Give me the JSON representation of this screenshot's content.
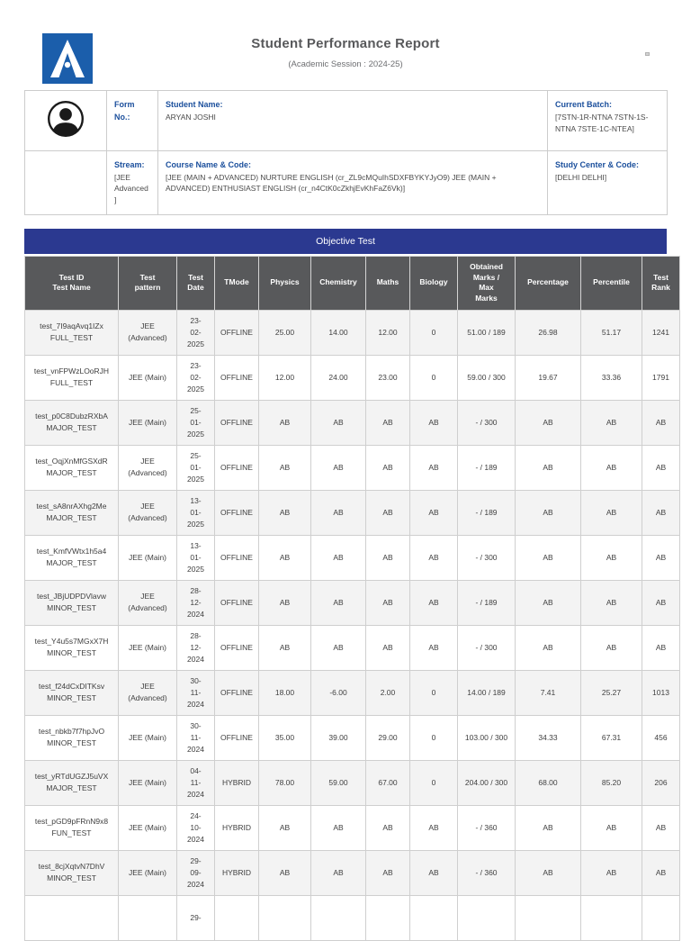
{
  "header": {
    "title": "Student Performance Report",
    "subtitle": "(Academic Session : 2024-25)",
    "logo_icon": "allen-a-logo",
    "logo_color": "#1B5EAB"
  },
  "student_info": {
    "avatar_icon": "user-avatar-icon",
    "form_label": "Form No.:",
    "name_label": "Student Name:",
    "name_value": "ARYAN JOSHI",
    "batch_label": "Current Batch:",
    "batch_value": "[7STN-1R-NTNA 7STN-1S-NTNA 7STE-1C-NTEA]",
    "stream_label": "Stream:",
    "stream_value": "[JEE Advanced]",
    "course_label": "Course Name & Code:",
    "course_value": "[JEE (MAIN + ADVANCED) NURTURE ENGLISH (cr_ZL9cMQuIhSDXFBYKYJyO9) JEE (MAIN + ADVANCED) ENTHUSIAST ENGLISH (cr_n4CtK0cZkhjEvKhFaZ6Vk)]",
    "center_label": "Study Center & Code:",
    "center_value": "[DELHI DELHI]"
  },
  "table": {
    "section_title": "Objective Test",
    "colors": {
      "banner": "#2B3990",
      "header_bg": "#58595B",
      "stripe": "#F3F3F3",
      "label_blue": "#1B4F9C"
    },
    "columns": [
      {
        "lines": [
          "Test ID",
          "Test Name"
        ]
      },
      {
        "lines": [
          "Test",
          "pattern"
        ]
      },
      {
        "lines": [
          "Test",
          "Date"
        ]
      },
      {
        "lines": [
          "TMode"
        ]
      },
      {
        "lines": [
          "Physics"
        ]
      },
      {
        "lines": [
          "Chemistry"
        ]
      },
      {
        "lines": [
          "Maths"
        ]
      },
      {
        "lines": [
          "Biology"
        ]
      },
      {
        "lines": [
          "Obtained",
          "Marks /",
          "Max",
          "Marks"
        ]
      },
      {
        "lines": [
          "Percentage"
        ]
      },
      {
        "lines": [
          "Percentile"
        ]
      },
      {
        "lines": [
          "Test",
          "Rank"
        ]
      }
    ],
    "rows": [
      {
        "test_id": "test_7I9aqAvq1IZx",
        "test_name": "FULL_TEST",
        "pattern": "JEE (Advanced)",
        "date": [
          "23-",
          "02-",
          "2025"
        ],
        "tmode": "OFFLINE",
        "physics": "25.00",
        "chemistry": "14.00",
        "maths": "12.00",
        "biology": "0",
        "marks": "51.00 / 189",
        "percentage": "26.98",
        "percentile": "51.17",
        "rank": "1241"
      },
      {
        "test_id": "test_vnFPWzLOoRJH",
        "test_name": "FULL_TEST",
        "pattern": "JEE (Main)",
        "date": [
          "23-",
          "02-",
          "2025"
        ],
        "tmode": "OFFLINE",
        "physics": "12.00",
        "chemistry": "24.00",
        "maths": "23.00",
        "biology": "0",
        "marks": "59.00 / 300",
        "percentage": "19.67",
        "percentile": "33.36",
        "rank": "1791"
      },
      {
        "test_id": "test_p0C8DubzRXbA",
        "test_name": "MAJOR_TEST",
        "pattern": "JEE (Main)",
        "date": [
          "25-",
          "01-",
          "2025"
        ],
        "tmode": "OFFLINE",
        "physics": "AB",
        "chemistry": "AB",
        "maths": "AB",
        "biology": "AB",
        "marks": "- / 300",
        "percentage": "AB",
        "percentile": "AB",
        "rank": "AB"
      },
      {
        "test_id": "test_OqjXnMfGSXdR",
        "test_name": "MAJOR_TEST",
        "pattern": "JEE (Advanced)",
        "date": [
          "25-",
          "01-",
          "2025"
        ],
        "tmode": "OFFLINE",
        "physics": "AB",
        "chemistry": "AB",
        "maths": "AB",
        "biology": "AB",
        "marks": "- / 189",
        "percentage": "AB",
        "percentile": "AB",
        "rank": "AB"
      },
      {
        "test_id": "test_sA8nrAXhg2Me",
        "test_name": "MAJOR_TEST",
        "pattern": "JEE (Advanced)",
        "date": [
          "13-",
          "01-",
          "2025"
        ],
        "tmode": "OFFLINE",
        "physics": "AB",
        "chemistry": "AB",
        "maths": "AB",
        "biology": "AB",
        "marks": "- / 189",
        "percentage": "AB",
        "percentile": "AB",
        "rank": "AB"
      },
      {
        "test_id": "test_KmfVWtx1h5a4",
        "test_name": "MAJOR_TEST",
        "pattern": "JEE (Main)",
        "date": [
          "13-",
          "01-",
          "2025"
        ],
        "tmode": "OFFLINE",
        "physics": "AB",
        "chemistry": "AB",
        "maths": "AB",
        "biology": "AB",
        "marks": "- / 300",
        "percentage": "AB",
        "percentile": "AB",
        "rank": "AB"
      },
      {
        "test_id": "test_JBjUDPDVlavw",
        "test_name": "MINOR_TEST",
        "pattern": "JEE (Advanced)",
        "date": [
          "28-",
          "12-",
          "2024"
        ],
        "tmode": "OFFLINE",
        "physics": "AB",
        "chemistry": "AB",
        "maths": "AB",
        "biology": "AB",
        "marks": "- / 189",
        "percentage": "AB",
        "percentile": "AB",
        "rank": "AB"
      },
      {
        "test_id": "test_Y4u5s7MGxX7H",
        "test_name": "MINOR_TEST",
        "pattern": "JEE (Main)",
        "date": [
          "28-",
          "12-",
          "2024"
        ],
        "tmode": "OFFLINE",
        "physics": "AB",
        "chemistry": "AB",
        "maths": "AB",
        "biology": "AB",
        "marks": "- / 300",
        "percentage": "AB",
        "percentile": "AB",
        "rank": "AB"
      },
      {
        "test_id": "test_f24dCxDITKsv",
        "test_name": "MINOR_TEST",
        "pattern": "JEE (Advanced)",
        "date": [
          "30-",
          "11-",
          "2024"
        ],
        "tmode": "OFFLINE",
        "physics": "18.00",
        "chemistry": "-6.00",
        "maths": "2.00",
        "biology": "0",
        "marks": "14.00 / 189",
        "percentage": "7.41",
        "percentile": "25.27",
        "rank": "1013"
      },
      {
        "test_id": "test_nbkb7f7hpJvO",
        "test_name": "MINOR_TEST",
        "pattern": "JEE (Main)",
        "date": [
          "30-",
          "11-",
          "2024"
        ],
        "tmode": "OFFLINE",
        "physics": "35.00",
        "chemistry": "39.00",
        "maths": "29.00",
        "biology": "0",
        "marks": "103.00 / 300",
        "percentage": "34.33",
        "percentile": "67.31",
        "rank": "456"
      },
      {
        "test_id": "test_yRTdUGZJ5uVX",
        "test_name": "MAJOR_TEST",
        "pattern": "JEE (Main)",
        "date": [
          "04-",
          "11-",
          "2024"
        ],
        "tmode": "HYBRID",
        "physics": "78.00",
        "chemistry": "59.00",
        "maths": "67.00",
        "biology": "0",
        "marks": "204.00 / 300",
        "percentage": "68.00",
        "percentile": "85.20",
        "rank": "206"
      },
      {
        "test_id": "test_pGD9pFRnN9x8",
        "test_name": "FUN_TEST",
        "pattern": "JEE (Main)",
        "date": [
          "24-",
          "10-",
          "2024"
        ],
        "tmode": "HYBRID",
        "physics": "AB",
        "chemistry": "AB",
        "maths": "AB",
        "biology": "AB",
        "marks": "- / 360",
        "percentage": "AB",
        "percentile": "AB",
        "rank": "AB"
      },
      {
        "test_id": "test_8cjXqtvN7DhV",
        "test_name": "MINOR_TEST",
        "pattern": "JEE (Main)",
        "date": [
          "29-",
          "09-",
          "2024"
        ],
        "tmode": "HYBRID",
        "physics": "AB",
        "chemistry": "AB",
        "maths": "AB",
        "biology": "AB",
        "marks": "- / 360",
        "percentage": "AB",
        "percentile": "AB",
        "rank": "AB"
      },
      {
        "test_id": "",
        "test_name": "",
        "pattern": "",
        "date": [
          "29-"
        ],
        "tmode": "",
        "physics": "",
        "chemistry": "",
        "maths": "",
        "biology": "",
        "marks": "",
        "percentage": "",
        "percentile": "",
        "rank": ""
      }
    ]
  }
}
